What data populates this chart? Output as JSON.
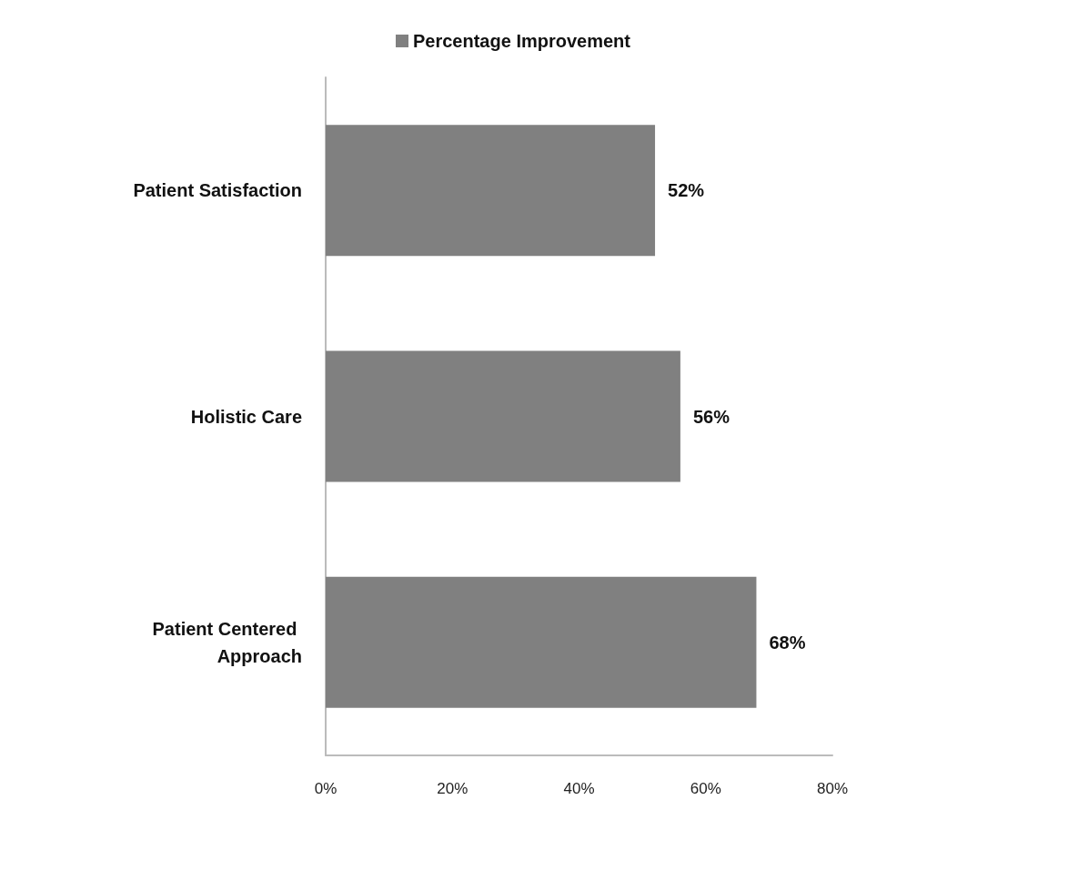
{
  "chart_data": {
    "type": "bar",
    "orientation": "horizontal",
    "categories": [
      "Patient Satisfaction",
      "Holistic Care",
      "Patient Centered Approach"
    ],
    "series": [
      {
        "name": "Percentage Improvement",
        "color": "#808080",
        "values": [
          52,
          56,
          68
        ],
        "value_labels": [
          "52%",
          "56%",
          "68%"
        ]
      }
    ],
    "xlim": [
      0,
      80
    ],
    "xticks": [
      {
        "value": 0,
        "label": "0%"
      },
      {
        "value": 20,
        "label": "20%"
      },
      {
        "value": 40,
        "label": "40%"
      },
      {
        "value": 60,
        "label": "60%"
      },
      {
        "value": 80,
        "label": "80%"
      }
    ],
    "grid": false,
    "legend": "top"
  }
}
